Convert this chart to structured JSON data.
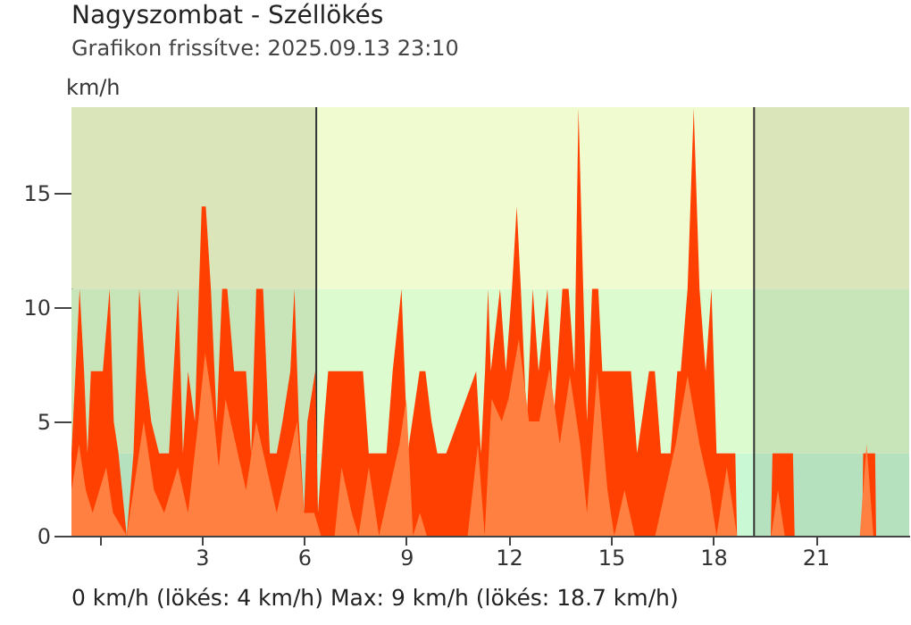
{
  "chart_data": {
    "type": "area",
    "title": "Nagyszombat - Széllökés",
    "subtitle": "Grafikon frissítve: 2025.09.13 23:10",
    "ylabel": "km/h",
    "annotations": [
      "0 km/h (lökés: 4 km/h)  Max: 9 km/h (lökés: 18.7 km/h)"
    ],
    "xlim": [
      -0.82,
      23.75
    ],
    "xticks": [
      {
        "value": 0,
        "label": null
      },
      3,
      6,
      9,
      12,
      15,
      18,
      21
    ],
    "ylim": [
      0,
      18.75
    ],
    "yticks": [
      0,
      5,
      10,
      15
    ],
    "grid": false,
    "ref_lines": [
      {
        "axis": "x",
        "value": 6.36,
        "label": null,
        "color": "#333333"
      },
      {
        "axis": "x",
        "value": 19.2,
        "label": null,
        "color": "#333333"
      }
    ],
    "bands": [
      {
        "axis": "y",
        "from": 0,
        "to": 3.6,
        "label": null,
        "color": "#c8f8d4"
      },
      {
        "axis": "y",
        "from": 3.6,
        "to": 10.8,
        "label": null,
        "color": "#dcfcd0"
      },
      {
        "axis": "y",
        "from": 10.8,
        "to": 18.75,
        "label": null,
        "color": "#f0fcd0"
      },
      {
        "axis": "x",
        "from": -0.82,
        "to": 6.36,
        "label": null,
        "color": "#1a1a00"
      },
      {
        "axis": "x",
        "from": 19.2,
        "to": 23.75,
        "label": null,
        "color": "#1a1a00"
      }
    ],
    "series": [
      {
        "color": "#ff4000",
        "x": [
          -0.82,
          -0.7,
          -0.58,
          -0.45,
          -0.35,
          -0.25,
          0.1,
          0.3,
          0.42,
          0.56,
          0.8,
          1.0,
          1.17,
          1.35,
          1.52,
          1.75,
          2.04,
          2.31,
          2.45,
          2.6,
          2.8,
          2.92,
          3.0,
          3.12,
          3.27,
          3.44,
          3.6,
          3.75,
          3.95,
          4.3,
          4.45,
          4.6,
          4.8,
          5.0,
          5.2,
          5.37,
          5.6,
          5.72,
          5.85,
          6.0,
          6.1,
          6.33,
          6.41,
          6.59,
          6.71,
          7.73,
          7.9,
          8.42,
          8.6,
          8.86,
          9.04,
          9.39,
          9.56,
          9.74,
          9.91,
          10.17,
          11.05,
          11.19,
          11.31,
          11.4,
          11.48,
          11.75,
          11.92,
          12.1,
          12.24,
          12.36,
          12.53,
          12.71,
          12.88,
          13.14,
          13.32,
          13.58,
          13.76,
          13.93,
          14.05,
          14.19,
          14.3,
          14.45,
          14.63,
          14.75,
          14.89,
          15.59,
          15.77,
          16.12,
          16.29,
          16.47,
          16.75,
          16.95,
          17.05,
          17.25,
          17.43,
          17.6,
          17.78,
          17.95,
          18.1,
          18.3,
          18.65,
          18.7,
          19.69,
          19.74,
          20.34,
          20.39,
          22.37,
          22.4,
          22.75,
          22.78
        ],
        "values": [
          3.6,
          7.2,
          10.8,
          7.2,
          3.6,
          7.2,
          7.2,
          10.8,
          5,
          3.6,
          0,
          3.6,
          10.8,
          7.2,
          5,
          3.6,
          3.6,
          10.8,
          3.6,
          7.2,
          5,
          10.8,
          14.4,
          14.4,
          10.8,
          5,
          10.8,
          10.8,
          7.2,
          7.2,
          3.6,
          10.8,
          10.8,
          3.6,
          3.6,
          5,
          7.2,
          10.8,
          5,
          1,
          5,
          7.2,
          1,
          5,
          7.2,
          7.2,
          3.6,
          3.6,
          7.2,
          10.8,
          3.6,
          7.2,
          7.2,
          5,
          3.6,
          3.6,
          7.2,
          3.6,
          7.2,
          10.8,
          7.2,
          10.8,
          7.2,
          10.8,
          14.4,
          10.8,
          5,
          10.8,
          7.2,
          10.8,
          5,
          10.8,
          10.8,
          7.2,
          18.7,
          10.8,
          5,
          10.8,
          10.8,
          7.2,
          7.2,
          7.2,
          3.6,
          7.2,
          7.2,
          3.6,
          3.6,
          7.2,
          7.2,
          10.8,
          18.7,
          10.8,
          7.2,
          10.8,
          3.6,
          3.6,
          3.6,
          0,
          0,
          3.6,
          3.6,
          0,
          0,
          3.6,
          3.6,
          0
        ]
      },
      {
        "color": "#ff8040",
        "x": [
          -0.82,
          -0.6,
          -0.4,
          -0.2,
          0.2,
          0.4,
          0.8,
          1.1,
          1.3,
          1.6,
          1.9,
          2.3,
          2.6,
          2.9,
          3.1,
          3.3,
          3.5,
          3.7,
          4.0,
          4.3,
          4.6,
          4.9,
          5.2,
          5.5,
          5.8,
          6.0,
          6.3,
          6.5,
          6.9,
          7.1,
          7.4,
          7.6,
          7.9,
          8.2,
          8.5,
          8.8,
          9.0,
          9.2,
          9.4,
          9.6,
          10.8,
          11.1,
          11.3,
          11.5,
          11.8,
          12.0,
          12.3,
          12.6,
          12.9,
          13.2,
          13.5,
          13.8,
          14.1,
          14.3,
          14.6,
          14.9,
          15.1,
          15.4,
          15.7,
          16.3,
          16.6,
          16.9,
          17.25,
          17.6,
          17.9,
          18.1,
          18.4,
          18.7,
          19.7,
          19.9,
          20.1,
          22.3,
          22.5,
          22.7,
          22.9
        ],
        "values": [
          2,
          4,
          2,
          1,
          3,
          1,
          0,
          3,
          5,
          2,
          1,
          3,
          1,
          5,
          8,
          6,
          3,
          6,
          4,
          2,
          5,
          3,
          1,
          3,
          5,
          1,
          1,
          0,
          0,
          3,
          1,
          0,
          3,
          0,
          2,
          4,
          6,
          0,
          1,
          0,
          0,
          4,
          0,
          6,
          5,
          6,
          8.6,
          5,
          5,
          7.3,
          4,
          7,
          4,
          1,
          7.2,
          2,
          0,
          2,
          0,
          0,
          2,
          4,
          7,
          4,
          2,
          0,
          3,
          0,
          0,
          2,
          0,
          0,
          4,
          0,
          0
        ]
      }
    ]
  }
}
